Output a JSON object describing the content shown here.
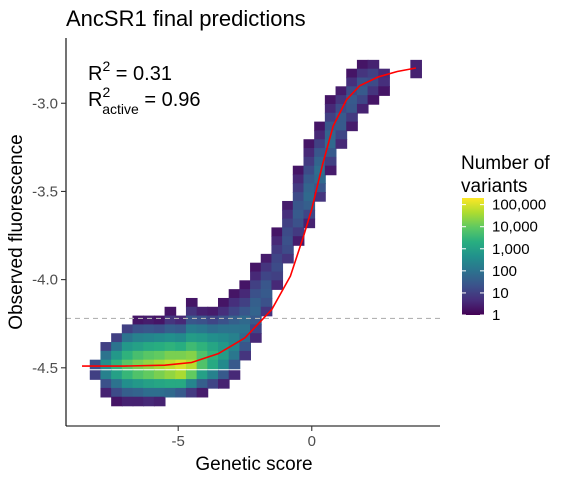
{
  "chart_data": {
    "type": "heatmap",
    "title": "AncSR1 final predictions",
    "xlabel": "Genetic score",
    "ylabel": "Observed fluorescence",
    "xlim": [
      -9.2,
      4.8
    ],
    "ylim": [
      -4.83,
      -2.63
    ],
    "x_ticks": [
      {
        "value": -5,
        "label": "-5"
      },
      {
        "value": 0,
        "label": "0"
      }
    ],
    "y_ticks": [
      {
        "value": -3.0,
        "label": "-3.0"
      },
      {
        "value": -3.5,
        "label": "-3.5"
      },
      {
        "value": -4.0,
        "label": "-4.0"
      },
      {
        "value": -4.5,
        "label": "-4.5"
      }
    ],
    "grid": false,
    "annotations": {
      "r2": {
        "base": "R",
        "sup": "2",
        "text": " = 0.31"
      },
      "r2_active": {
        "base": "R",
        "sup": "2",
        "sub": "active",
        "text": " = 0.96"
      }
    },
    "threshold_line": {
      "y": -4.22,
      "style": "dashed",
      "color": "#b3b3b3"
    },
    "fit_curve": {
      "color": "#ff0000",
      "points": [
        [
          -8.6,
          -4.49
        ],
        [
          -7.0,
          -4.49
        ],
        [
          -5.5,
          -4.485
        ],
        [
          -4.5,
          -4.47
        ],
        [
          -3.5,
          -4.42
        ],
        [
          -2.5,
          -4.33
        ],
        [
          -1.5,
          -4.17
        ],
        [
          -0.8,
          -3.98
        ],
        [
          -0.3,
          -3.75
        ],
        [
          0.0,
          -3.6
        ],
        [
          0.4,
          -3.35
        ],
        [
          0.8,
          -3.13
        ],
        [
          1.3,
          -2.98
        ],
        [
          1.8,
          -2.9
        ],
        [
          2.5,
          -2.85
        ],
        [
          3.2,
          -2.82
        ],
        [
          3.9,
          -2.8
        ]
      ]
    },
    "bins": {
      "bin_width_x": 0.42,
      "bin_width_y": 0.052,
      "cells": [
        [
          -8.1,
          -4.48,
          1.3
        ],
        [
          -8.1,
          -4.54,
          1.0
        ],
        [
          -7.7,
          -4.38,
          1.0
        ],
        [
          -7.7,
          -4.43,
          2.0
        ],
        [
          -7.7,
          -4.48,
          2.6
        ],
        [
          -7.7,
          -4.54,
          2.3
        ],
        [
          -7.7,
          -4.59,
          1.3
        ],
        [
          -7.7,
          -4.64,
          0.5
        ],
        [
          -7.3,
          -4.33,
          1.0
        ],
        [
          -7.3,
          -4.38,
          2.0
        ],
        [
          -7.3,
          -4.43,
          2.8
        ],
        [
          -7.3,
          -4.48,
          3.4
        ],
        [
          -7.3,
          -4.54,
          3.0
        ],
        [
          -7.3,
          -4.59,
          2.0
        ],
        [
          -7.3,
          -4.64,
          1.2
        ],
        [
          -7.3,
          -4.69,
          0.3
        ],
        [
          -6.9,
          -4.28,
          1.0
        ],
        [
          -6.9,
          -4.33,
          2.0
        ],
        [
          -6.9,
          -4.38,
          2.8
        ],
        [
          -6.9,
          -4.43,
          3.4
        ],
        [
          -6.9,
          -4.48,
          3.9
        ],
        [
          -6.9,
          -4.54,
          3.5
        ],
        [
          -6.9,
          -4.59,
          2.6
        ],
        [
          -6.9,
          -4.64,
          1.6
        ],
        [
          -6.9,
          -4.69,
          0.5
        ],
        [
          -6.5,
          -4.23,
          0.3
        ],
        [
          -6.5,
          -4.28,
          1.3
        ],
        [
          -6.5,
          -4.33,
          2.3
        ],
        [
          -6.5,
          -4.38,
          3.0
        ],
        [
          -6.5,
          -4.43,
          3.7
        ],
        [
          -6.5,
          -4.48,
          4.2
        ],
        [
          -6.5,
          -4.54,
          3.8
        ],
        [
          -6.5,
          -4.59,
          2.8
        ],
        [
          -6.5,
          -4.64,
          1.7
        ],
        [
          -6.5,
          -4.69,
          0.5
        ],
        [
          -6.1,
          -4.23,
          0.4
        ],
        [
          -6.1,
          -4.28,
          1.4
        ],
        [
          -6.1,
          -4.33,
          2.4
        ],
        [
          -6.1,
          -4.38,
          3.2
        ],
        [
          -6.1,
          -4.43,
          3.9
        ],
        [
          -6.1,
          -4.48,
          4.4
        ],
        [
          -6.1,
          -4.54,
          4.0
        ],
        [
          -6.1,
          -4.59,
          3.0
        ],
        [
          -6.1,
          -4.64,
          1.9
        ],
        [
          -6.1,
          -4.69,
          0.6
        ],
        [
          -5.7,
          -4.23,
          0.3
        ],
        [
          -5.7,
          -4.28,
          1.3
        ],
        [
          -5.7,
          -4.33,
          2.5
        ],
        [
          -5.7,
          -4.38,
          3.3
        ],
        [
          -5.7,
          -4.43,
          4.0
        ],
        [
          -5.7,
          -4.48,
          4.6
        ],
        [
          -5.7,
          -4.54,
          4.2
        ],
        [
          -5.7,
          -4.59,
          3.1
        ],
        [
          -5.7,
          -4.64,
          1.9
        ],
        [
          -5.7,
          -4.69,
          0.5
        ],
        [
          -5.3,
          -4.18,
          0.3
        ],
        [
          -5.3,
          -4.23,
          0.8
        ],
        [
          -5.3,
          -4.28,
          1.6
        ],
        [
          -5.3,
          -4.33,
          2.6
        ],
        [
          -5.3,
          -4.38,
          3.4
        ],
        [
          -5.3,
          -4.43,
          4.2
        ],
        [
          -5.3,
          -4.48,
          4.8
        ],
        [
          -5.3,
          -4.54,
          4.4
        ],
        [
          -5.3,
          -4.59,
          3.2
        ],
        [
          -5.3,
          -4.64,
          1.8
        ],
        [
          -4.9,
          -4.23,
          0.6
        ],
        [
          -4.9,
          -4.28,
          1.5
        ],
        [
          -4.9,
          -4.33,
          2.5
        ],
        [
          -4.9,
          -4.38,
          3.3
        ],
        [
          -4.9,
          -4.43,
          4.2
        ],
        [
          -4.9,
          -4.48,
          5.0
        ],
        [
          -4.9,
          -4.54,
          4.6
        ],
        [
          -4.9,
          -4.59,
          3.2
        ],
        [
          -4.9,
          -4.64,
          1.5
        ],
        [
          -4.5,
          -4.13,
          0.3
        ],
        [
          -4.5,
          -4.18,
          0.8
        ],
        [
          -4.5,
          -4.23,
          1.4
        ],
        [
          -4.5,
          -4.28,
          2.2
        ],
        [
          -4.5,
          -4.33,
          2.9
        ],
        [
          -4.5,
          -4.38,
          3.6
        ],
        [
          -4.5,
          -4.43,
          4.3
        ],
        [
          -4.5,
          -4.48,
          4.7
        ],
        [
          -4.5,
          -4.54,
          4.0
        ],
        [
          -4.5,
          -4.59,
          2.4
        ],
        [
          -4.5,
          -4.64,
          0.9
        ],
        [
          -4.1,
          -4.18,
          0.5
        ],
        [
          -4.1,
          -4.23,
          1.3
        ],
        [
          -4.1,
          -4.28,
          2.1
        ],
        [
          -4.1,
          -4.33,
          2.8
        ],
        [
          -4.1,
          -4.38,
          3.4
        ],
        [
          -4.1,
          -4.43,
          3.8
        ],
        [
          -4.1,
          -4.48,
          3.8
        ],
        [
          -4.1,
          -4.54,
          3.0
        ],
        [
          -4.1,
          -4.59,
          1.6
        ],
        [
          -4.1,
          -4.64,
          0.4
        ],
        [
          -3.7,
          -4.18,
          0.4
        ],
        [
          -3.7,
          -4.23,
          1.1
        ],
        [
          -3.7,
          -4.28,
          1.9
        ],
        [
          -3.7,
          -4.33,
          2.6
        ],
        [
          -3.7,
          -4.38,
          3.1
        ],
        [
          -3.7,
          -4.43,
          3.4
        ],
        [
          -3.7,
          -4.48,
          3.2
        ],
        [
          -3.7,
          -4.54,
          2.3
        ],
        [
          -3.7,
          -4.59,
          1.1
        ],
        [
          -3.3,
          -4.13,
          0.3
        ],
        [
          -3.3,
          -4.18,
          0.7
        ],
        [
          -3.3,
          -4.23,
          1.3
        ],
        [
          -3.3,
          -4.28,
          2.0
        ],
        [
          -3.3,
          -4.33,
          2.5
        ],
        [
          -3.3,
          -4.38,
          2.8
        ],
        [
          -3.3,
          -4.43,
          2.9
        ],
        [
          -3.3,
          -4.48,
          2.5
        ],
        [
          -3.3,
          -4.54,
          1.5
        ],
        [
          -3.3,
          -4.59,
          0.5
        ],
        [
          -2.9,
          -4.08,
          0.3
        ],
        [
          -2.9,
          -4.13,
          0.7
        ],
        [
          -2.9,
          -4.18,
          1.1
        ],
        [
          -2.9,
          -4.23,
          1.6
        ],
        [
          -2.9,
          -4.28,
          2.0
        ],
        [
          -2.9,
          -4.33,
          2.3
        ],
        [
          -2.9,
          -4.38,
          2.4
        ],
        [
          -2.9,
          -4.43,
          2.1
        ],
        [
          -2.9,
          -4.48,
          1.5
        ],
        [
          -2.9,
          -4.54,
          0.6
        ],
        [
          -2.5,
          -4.03,
          0.3
        ],
        [
          -2.5,
          -4.08,
          0.6
        ],
        [
          -2.5,
          -4.13,
          1.0
        ],
        [
          -2.5,
          -4.18,
          1.4
        ],
        [
          -2.5,
          -4.23,
          1.8
        ],
        [
          -2.5,
          -4.28,
          2.0
        ],
        [
          -2.5,
          -4.33,
          1.8
        ],
        [
          -2.5,
          -4.38,
          1.4
        ],
        [
          -2.5,
          -4.43,
          0.8
        ],
        [
          -2.1,
          -3.93,
          0.3
        ],
        [
          -2.1,
          -3.98,
          0.6
        ],
        [
          -2.1,
          -4.03,
          1.0
        ],
        [
          -2.1,
          -4.08,
          1.3
        ],
        [
          -2.1,
          -4.13,
          1.6
        ],
        [
          -2.1,
          -4.18,
          1.7
        ],
        [
          -2.1,
          -4.23,
          1.5
        ],
        [
          -2.1,
          -4.28,
          1.1
        ],
        [
          -2.1,
          -4.33,
          0.6
        ],
        [
          -1.7,
          -3.88,
          0.4
        ],
        [
          -1.7,
          -3.93,
          0.8
        ],
        [
          -1.7,
          -3.98,
          1.1
        ],
        [
          -1.7,
          -4.03,
          1.4
        ],
        [
          -1.7,
          -4.08,
          1.5
        ],
        [
          -1.7,
          -4.13,
          1.3
        ],
        [
          -1.7,
          -4.18,
          0.8
        ],
        [
          -1.3,
          -3.73,
          0.3
        ],
        [
          -1.3,
          -3.78,
          0.6
        ],
        [
          -1.3,
          -3.83,
          0.9
        ],
        [
          -1.3,
          -3.88,
          1.1
        ],
        [
          -1.3,
          -3.93,
          1.2
        ],
        [
          -1.3,
          -3.98,
          1.0
        ],
        [
          -1.3,
          -4.03,
          0.6
        ],
        [
          -0.9,
          -3.58,
          0.4
        ],
        [
          -0.9,
          -3.63,
          0.7
        ],
        [
          -0.9,
          -3.68,
          1.0
        ],
        [
          -0.9,
          -3.73,
          1.2
        ],
        [
          -0.9,
          -3.78,
          1.3
        ],
        [
          -0.9,
          -3.83,
          1.2
        ],
        [
          -0.9,
          -3.88,
          0.8
        ],
        [
          -0.5,
          -3.38,
          0.3
        ],
        [
          -0.5,
          -3.43,
          0.6
        ],
        [
          -0.5,
          -3.48,
          0.9
        ],
        [
          -0.5,
          -3.53,
          1.2
        ],
        [
          -0.5,
          -3.58,
          1.4
        ],
        [
          -0.5,
          -3.63,
          1.5
        ],
        [
          -0.5,
          -3.68,
          1.3
        ],
        [
          -0.5,
          -3.73,
          0.9
        ],
        [
          -0.5,
          -3.78,
          0.4
        ],
        [
          -0.1,
          -3.23,
          0.3
        ],
        [
          -0.1,
          -3.28,
          0.6
        ],
        [
          -0.1,
          -3.33,
          0.9
        ],
        [
          -0.1,
          -3.38,
          1.2
        ],
        [
          -0.1,
          -3.43,
          1.5
        ],
        [
          -0.1,
          -3.48,
          1.7
        ],
        [
          -0.1,
          -3.53,
          1.8
        ],
        [
          -0.1,
          -3.58,
          1.6
        ],
        [
          -0.1,
          -3.63,
          1.1
        ],
        [
          -0.1,
          -3.68,
          0.5
        ],
        [
          0.3,
          -3.13,
          0.3
        ],
        [
          0.3,
          -3.18,
          0.6
        ],
        [
          0.3,
          -3.23,
          1.0
        ],
        [
          0.3,
          -3.28,
          1.4
        ],
        [
          0.3,
          -3.33,
          1.7
        ],
        [
          0.3,
          -3.38,
          1.9
        ],
        [
          0.3,
          -3.43,
          1.8
        ],
        [
          0.3,
          -3.48,
          1.4
        ],
        [
          0.3,
          -3.53,
          0.8
        ],
        [
          0.7,
          -2.98,
          0.3
        ],
        [
          0.7,
          -3.03,
          0.6
        ],
        [
          0.7,
          -3.08,
          1.0
        ],
        [
          0.7,
          -3.13,
          1.4
        ],
        [
          0.7,
          -3.18,
          1.7
        ],
        [
          0.7,
          -3.23,
          1.8
        ],
        [
          0.7,
          -3.28,
          1.5
        ],
        [
          0.7,
          -3.33,
          1.0
        ],
        [
          0.7,
          -3.38,
          0.4
        ],
        [
          1.1,
          -2.93,
          0.4
        ],
        [
          1.1,
          -2.98,
          0.8
        ],
        [
          1.1,
          -3.03,
          1.2
        ],
        [
          1.1,
          -3.08,
          1.5
        ],
        [
          1.1,
          -3.13,
          1.5
        ],
        [
          1.1,
          -3.18,
          1.1
        ],
        [
          1.1,
          -3.23,
          0.6
        ],
        [
          1.5,
          -2.83,
          0.3
        ],
        [
          1.5,
          -2.88,
          0.7
        ],
        [
          1.5,
          -2.93,
          1.2
        ],
        [
          1.5,
          -2.98,
          1.5
        ],
        [
          1.5,
          -3.03,
          1.4
        ],
        [
          1.5,
          -3.08,
          0.9
        ],
        [
          1.5,
          -3.13,
          0.4
        ],
        [
          1.9,
          -2.78,
          0.3
        ],
        [
          1.9,
          -2.83,
          0.8
        ],
        [
          1.9,
          -2.88,
          1.3
        ],
        [
          1.9,
          -2.93,
          1.5
        ],
        [
          1.9,
          -2.98,
          1.1
        ],
        [
          1.9,
          -3.03,
          0.5
        ],
        [
          2.3,
          -2.78,
          0.5
        ],
        [
          2.3,
          -2.83,
          1.0
        ],
        [
          2.3,
          -2.88,
          1.2
        ],
        [
          2.3,
          -2.93,
          0.8
        ],
        [
          2.3,
          -2.98,
          0.3
        ],
        [
          2.7,
          -2.83,
          0.6
        ],
        [
          2.7,
          -2.88,
          0.7
        ],
        [
          2.7,
          -2.93,
          0.3
        ],
        [
          3.9,
          -2.78,
          0.5
        ],
        [
          3.9,
          -2.83,
          0.5
        ]
      ]
    },
    "legend": {
      "title_lines": [
        "Number of",
        "variants"
      ],
      "labels": [
        {
          "log10": 5,
          "label": "100,000"
        },
        {
          "log10": 4,
          "label": "10,000"
        },
        {
          "log10": 3,
          "label": "1,000"
        },
        {
          "log10": 2,
          "label": "100"
        },
        {
          "log10": 1,
          "label": "10"
        },
        {
          "log10": 0,
          "label": "1"
        }
      ],
      "log10_max": 5.3,
      "placement": "right"
    },
    "colors": {
      "viridis": [
        "#440154",
        "#472d7b",
        "#3b528b",
        "#2c728e",
        "#21918c",
        "#28ae80",
        "#5ec962",
        "#addc30",
        "#fde725"
      ],
      "axis": "#000000",
      "tick_label": "#4d4d4d"
    }
  }
}
